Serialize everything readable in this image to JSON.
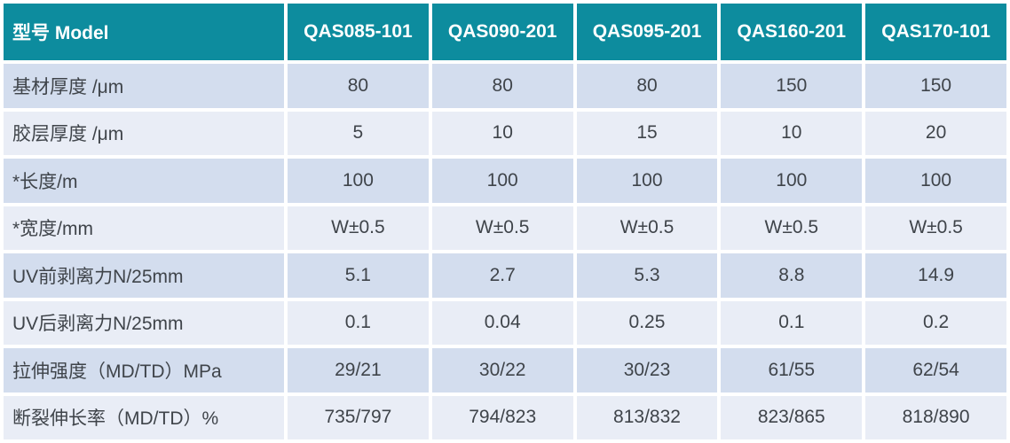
{
  "colors": {
    "header_bg": "#0d8c9e",
    "header_text": "#ffffff",
    "row_alt_dark": "#d3ddee",
    "row_alt_light": "#e9edf6",
    "body_text": "#3f444a",
    "gap": "#ffffff"
  },
  "table": {
    "columns": [
      "型号 Model",
      "QAS085-101",
      "QAS090-201",
      "QAS095-201",
      "QAS160-201",
      "QAS170-101"
    ],
    "rows": [
      {
        "label": "基材厚度 /μm",
        "values": [
          "80",
          "80",
          "80",
          "150",
          "150"
        ]
      },
      {
        "label": "胶层厚度 /μm",
        "values": [
          "5",
          "10",
          "15",
          "10",
          "20"
        ]
      },
      {
        "label": "*长度/m",
        "values": [
          "100",
          "100",
          "100",
          "100",
          "100"
        ]
      },
      {
        "label": "*宽度/mm",
        "values": [
          "W±0.5",
          "W±0.5",
          "W±0.5",
          "W±0.5",
          "W±0.5"
        ]
      },
      {
        "label": "UV前剥离力N/25mm",
        "values": [
          "5.1",
          "2.7",
          "5.3",
          "8.8",
          "14.9"
        ]
      },
      {
        "label": "UV后剥离力N/25mm",
        "values": [
          "0.1",
          "0.04",
          "0.25",
          "0.1",
          "0.2"
        ]
      },
      {
        "label": "拉伸强度（MD/TD）MPa",
        "values": [
          "29/21",
          "30/22",
          "30/23",
          "61/55",
          "62/54"
        ]
      },
      {
        "label": "断裂伸长率（MD/TD）%",
        "values": [
          "735/797",
          "794/823",
          "813/832",
          "823/865",
          "818/890"
        ]
      }
    ]
  }
}
